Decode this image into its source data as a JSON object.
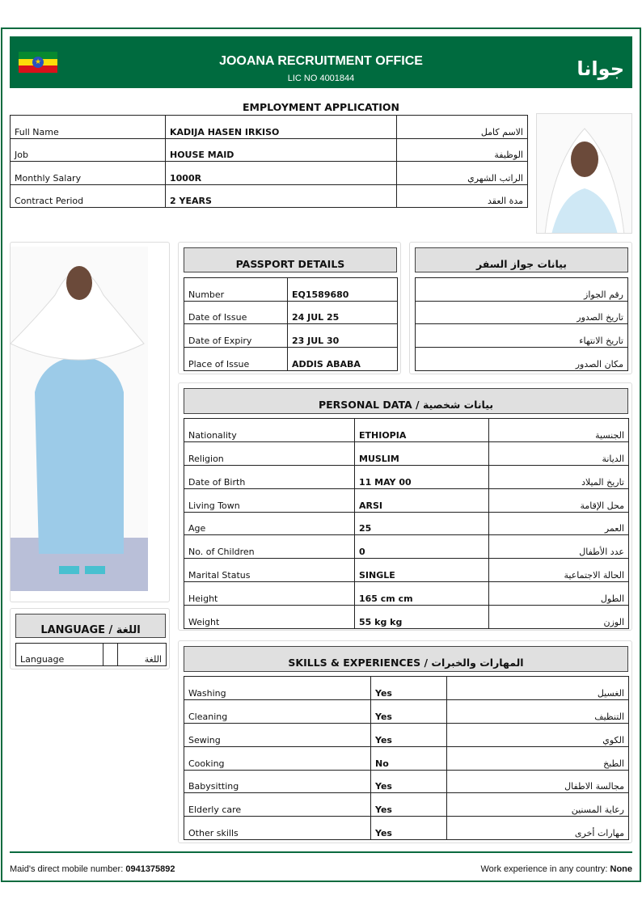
{
  "header": {
    "title": "JOOANA RECRUITMENT OFFICE",
    "license": "LIC NO 4001844",
    "arabic_brand": "جوانا",
    "flag_icon": "ethiopia-flag-icon",
    "brand_color": "#006b3f"
  },
  "form_title": "EMPLOYMENT APPLICATION",
  "main_info": [
    {
      "label": "Full Name",
      "value": "KADIJA HASEN IRKISO",
      "ar": "الاسم كامل"
    },
    {
      "label": "Job",
      "value": "HOUSE MAID",
      "ar": "الوظيفة"
    },
    {
      "label": "Monthly Salary",
      "value": "1000R",
      "ar": "الراتب الشهري"
    },
    {
      "label": "Contract Period",
      "value": "2 YEARS",
      "ar": "مدة العقد"
    }
  ],
  "passport": {
    "title": "PASSPORT DETAILS",
    "title_ar": "بيانات جواز السفر",
    "rows": [
      {
        "label": "Number",
        "value": "EQ1589680",
        "ar": "رقم الجواز"
      },
      {
        "label": "Date of Issue",
        "value": "24 JUL 25",
        "ar": "تاريخ الصدور"
      },
      {
        "label": "Date of Expiry",
        "value": "23 JUL 30",
        "ar": "تاريخ الانتهاء"
      },
      {
        "label": "Place of Issue",
        "value": "ADDIS ABABA",
        "ar": "مكان الصدور"
      }
    ]
  },
  "personal": {
    "title": "PERSONAL DATA / بيانات شخصية",
    "rows": [
      {
        "label": "Nationality",
        "value": "ETHIOPIA",
        "ar": "الجنسية"
      },
      {
        "label": "Religion",
        "value": "MUSLIM",
        "ar": "الديانة"
      },
      {
        "label": "Date of Birth",
        "value": "11 MAY 00",
        "ar": "تاريخ الميلاد"
      },
      {
        "label": "Living Town",
        "value": "ARSI",
        "ar": "محل الإقامة"
      },
      {
        "label": "Age",
        "value": "25",
        "ar": "العمر"
      },
      {
        "label": "No. of Children",
        "value": "0",
        "ar": "عدد الأطفال"
      },
      {
        "label": "Marital Status",
        "value": "SINGLE",
        "ar": "الحالة الاجتماعية"
      },
      {
        "label": "Height",
        "value": "165 cm cm",
        "ar": "الطول"
      },
      {
        "label": "Weight",
        "value": "55 kg kg",
        "ar": "الوزن"
      }
    ]
  },
  "skills": {
    "title": "SKILLS & EXPERIENCES / المهارات والخبرات",
    "rows": [
      {
        "label": "Washing",
        "value": "Yes",
        "ar": "الغسيل"
      },
      {
        "label": "Cleaning",
        "value": "Yes",
        "ar": "التنظيف"
      },
      {
        "label": "Sewing",
        "value": "Yes",
        "ar": "الكوي"
      },
      {
        "label": "Cooking",
        "value": "No",
        "ar": "الطبخ"
      },
      {
        "label": "Babysitting",
        "value": "Yes",
        "ar": "مجالسة الاطفال"
      },
      {
        "label": "Elderly care",
        "value": "Yes",
        "ar": "رعاية المسنين"
      },
      {
        "label": "Other skills",
        "value": "Yes",
        "ar": "مهارات أخرى"
      }
    ]
  },
  "language": {
    "title": "LANGUAGE / اللغة",
    "label": "Language",
    "value": "",
    "ar": "اللغة"
  },
  "footer": {
    "mobile_label": "Maid's direct mobile number:",
    "mobile": "0941375892",
    "exp_label": "Work experience in any country:",
    "exp": "None"
  }
}
